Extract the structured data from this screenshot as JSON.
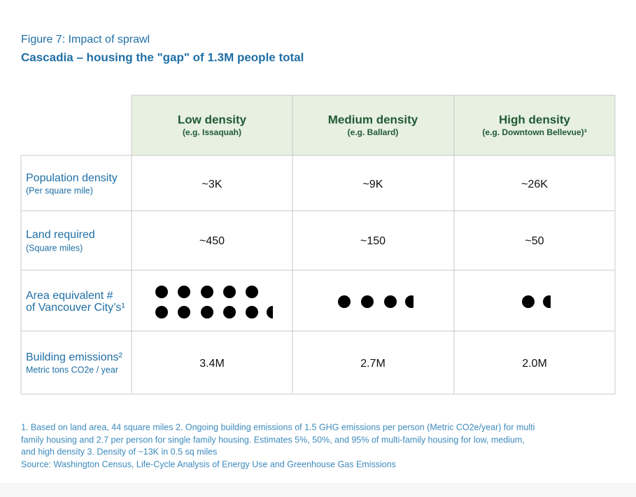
{
  "header": {
    "figure_label": "Figure 7: Impact of sprawl",
    "title": "Cascadia – housing the \"gap\" of 1.3M people total"
  },
  "table": {
    "columns": [
      {
        "name": "Low density",
        "example": "(e.g. Issaquah)"
      },
      {
        "name": "Medium density",
        "example": "(e.g. Ballard)"
      },
      {
        "name": "High density",
        "example": "(e.g. Downtown Bellevue)³"
      }
    ],
    "rows": [
      {
        "label": "Population density",
        "sublabel": "(Per square mile)",
        "values": [
          "~3K",
          "~9K",
          "~26K"
        ]
      },
      {
        "label": "Land required",
        "sublabel": "(Square miles)",
        "values": [
          "~450",
          "~150",
          "~50"
        ]
      },
      {
        "label": [
          "Area equivalent #",
          "of Vancouver City’s¹"
        ]
      },
      {
        "label": "Building emissions²",
        "sublabel": "Metric tons CO2e / year",
        "values": [
          "3.4M",
          "2.7M",
          "2.0M"
        ]
      }
    ]
  },
  "footnotes": [
    "1. Based on land area, 44 square miles  2. Ongoing building emissions of 1.5 GHG emissions per person (Metric CO2e/year) for multi",
    "family housing and 2.7 per person for single family housing.  Estimates 5%, 50%, and 95% of multi-family housing for low, medium,",
    "and high density  3. Density of ~13K in 0.5 sq miles",
    "Source: Washington Census, Life-Cycle Analysis of Energy Use and Greenhouse Gas Emissions"
  ]
}
